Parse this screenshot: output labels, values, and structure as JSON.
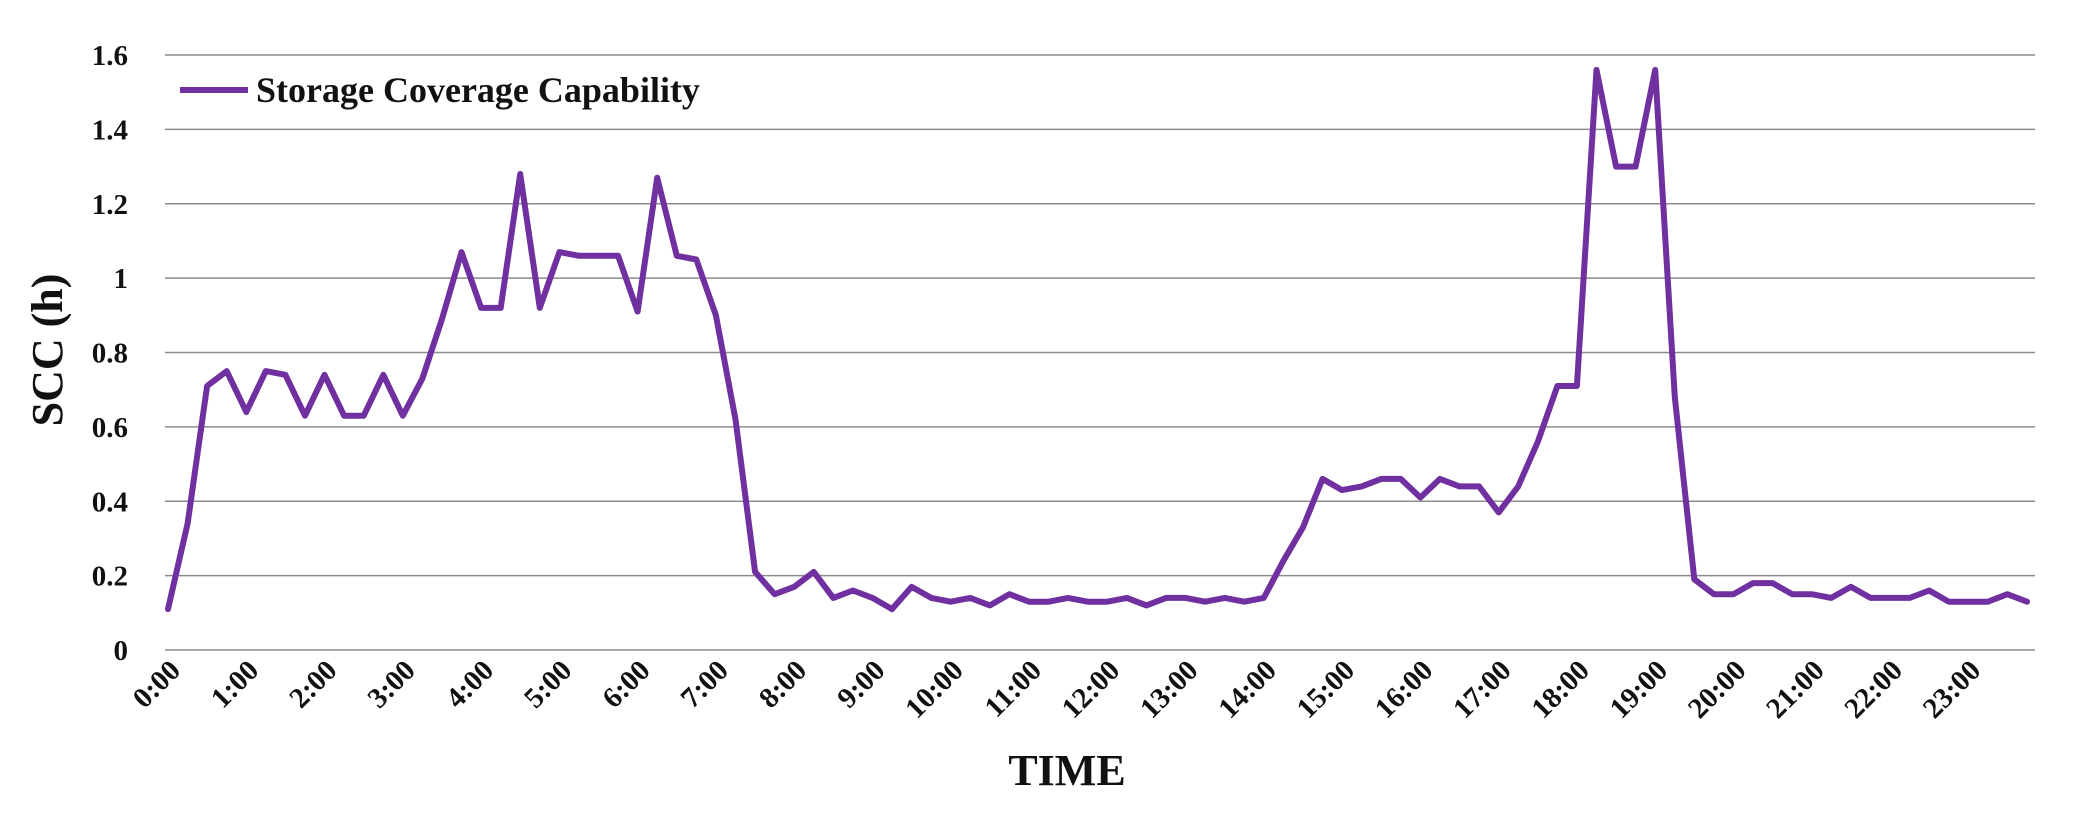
{
  "chart_data": {
    "type": "line",
    "title": "",
    "xlabel": "TIME",
    "ylabel": "SCC (h)",
    "ylim": [
      0,
      1.6
    ],
    "yticks": [
      "0",
      "0.2",
      "0.4",
      "0.6",
      "0.8",
      "1",
      "1.2",
      "1.4",
      "1.6"
    ],
    "x_tick_labels": [
      "0:00",
      "1:00",
      "2:00",
      "3:00",
      "4:00",
      "5:00",
      "6:00",
      "7:00",
      "8:00",
      "9:00",
      "10:00",
      "11:00",
      "12:00",
      "13:00",
      "14:00",
      "15:00",
      "16:00",
      "17:00",
      "18:00",
      "19:00",
      "20:00",
      "21:00",
      "22:00",
      "23:00"
    ],
    "grid": "horizontal",
    "legend_position": "top-left",
    "series": [
      {
        "name": "Storage Coverage Capability",
        "color": "#7030a0",
        "values": [
          0.11,
          0.34,
          0.71,
          0.75,
          0.64,
          0.75,
          0.74,
          0.63,
          0.74,
          0.63,
          0.63,
          0.74,
          0.63,
          0.73,
          0.89,
          1.07,
          0.92,
          0.92,
          1.28,
          0.92,
          1.07,
          1.06,
          1.06,
          1.06,
          0.91,
          1.27,
          1.06,
          1.05,
          0.9,
          0.62,
          0.21,
          0.15,
          0.17,
          0.21,
          0.14,
          0.16,
          0.14,
          0.11,
          0.17,
          0.14,
          0.13,
          0.14,
          0.12,
          0.15,
          0.13,
          0.13,
          0.14,
          0.13,
          0.13,
          0.14,
          0.12,
          0.14,
          0.14,
          0.13,
          0.14,
          0.13,
          0.14,
          0.24,
          0.33,
          0.46,
          0.43,
          0.44,
          0.46,
          0.46,
          0.41,
          0.46,
          0.44,
          0.44,
          0.37,
          0.44,
          0.56,
          0.71,
          0.71,
          1.56,
          1.3,
          1.3,
          1.56,
          0.68,
          0.19,
          0.15,
          0.15,
          0.18,
          0.18,
          0.15,
          0.15,
          0.14,
          0.17,
          0.14,
          0.14,
          0.14,
          0.16,
          0.13,
          0.13,
          0.13,
          0.15,
          0.13
        ]
      }
    ]
  }
}
